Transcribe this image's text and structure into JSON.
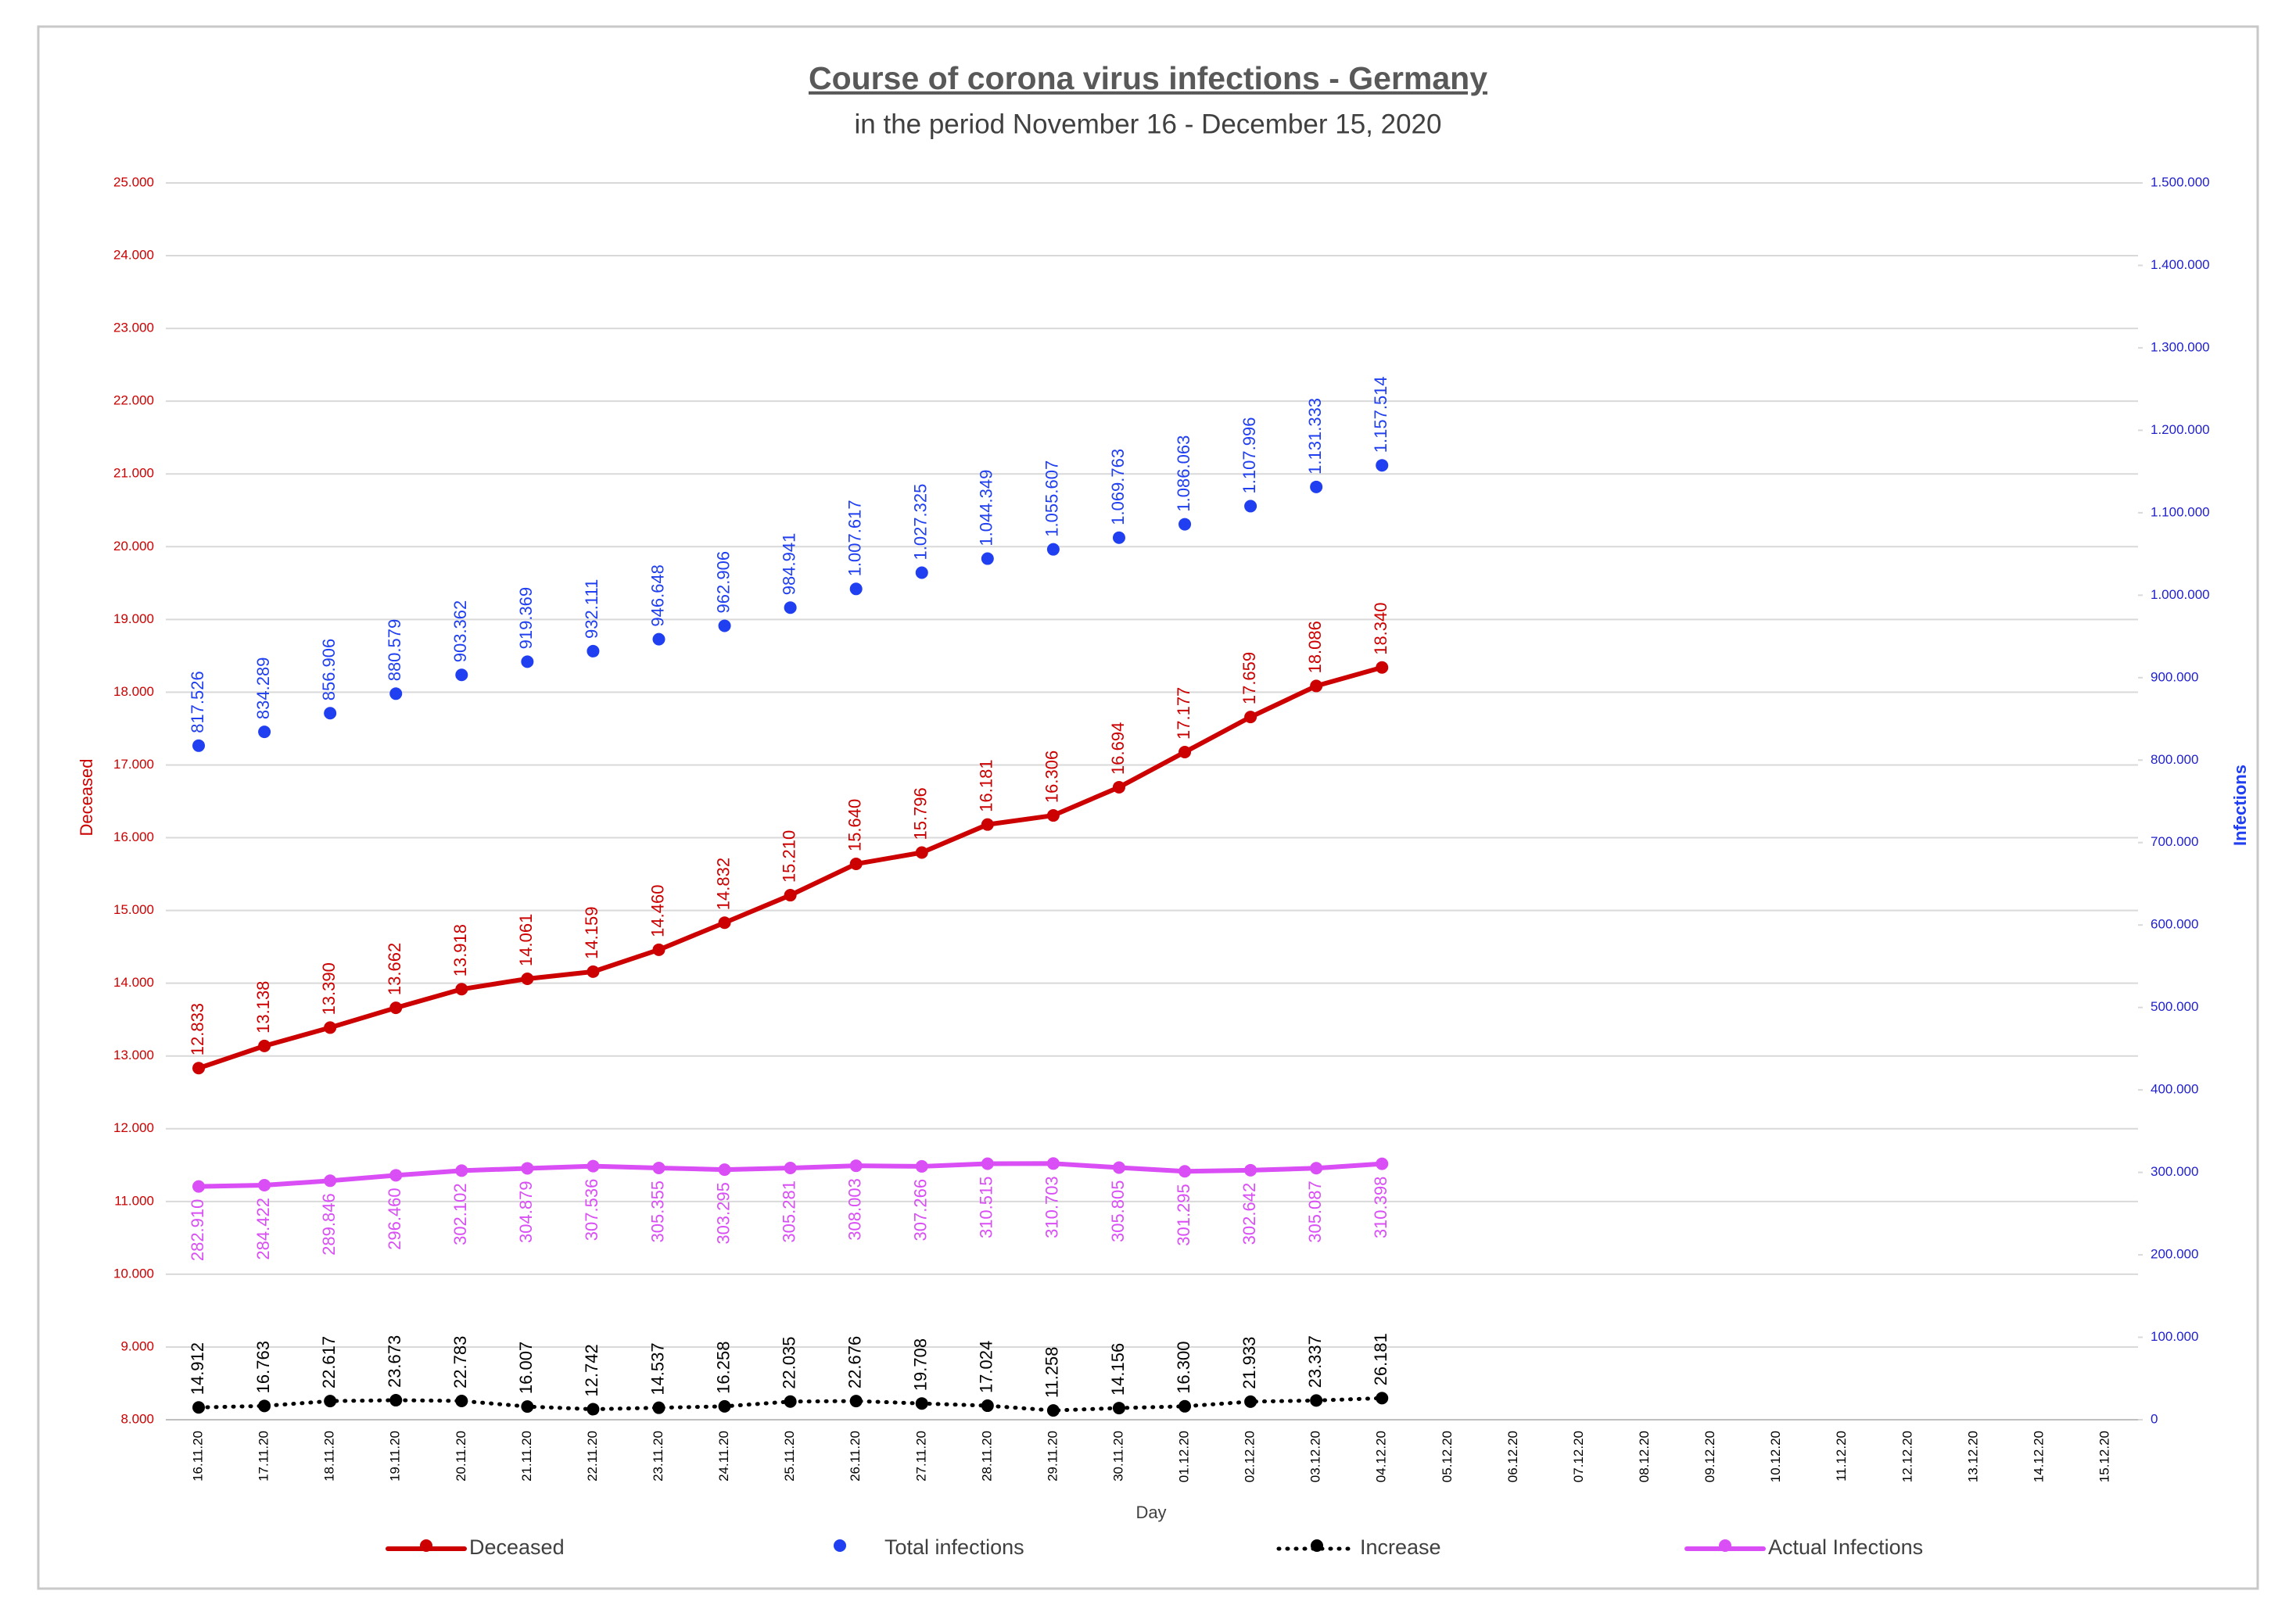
{
  "chart_data": {
    "type": "line",
    "title": "Course of corona virus infections - Germany",
    "subtitle": "in the period November 16 - December 15, 2020",
    "xlabel": "Day",
    "ylabel": "Deceased",
    "y2label": "Infections",
    "grid": true,
    "legend": "bottom",
    "categories": [
      "16.11.20",
      "17.11.20",
      "18.11.20",
      "19.11.20",
      "20.11.20",
      "21.11.20",
      "22.11.20",
      "23.11.20",
      "24.11.20",
      "25.11.20",
      "26.11.20",
      "27.11.20",
      "28.11.20",
      "29.11.20",
      "30.11.20",
      "01.12.20",
      "02.12.20",
      "03.12.20",
      "04.12.20",
      "05.12.20",
      "06.12.20",
      "07.12.20",
      "08.12.20",
      "09.12.20",
      "10.12.20",
      "11.12.20",
      "12.12.20",
      "13.12.20",
      "14.12.20",
      "15.12.20"
    ],
    "ylim": [
      8000,
      25000
    ],
    "yticks": [
      {
        "value": 8000,
        "label": "8.000"
      },
      {
        "value": 9000,
        "label": "9.000"
      },
      {
        "value": 10000,
        "label": "10.000"
      },
      {
        "value": 11000,
        "label": "11.000"
      },
      {
        "value": 12000,
        "label": "12.000"
      },
      {
        "value": 13000,
        "label": "13.000"
      },
      {
        "value": 14000,
        "label": "14.000"
      },
      {
        "value": 15000,
        "label": "15.000"
      },
      {
        "value": 16000,
        "label": "16.000"
      },
      {
        "value": 17000,
        "label": "17.000"
      },
      {
        "value": 18000,
        "label": "18.000"
      },
      {
        "value": 19000,
        "label": "19.000"
      },
      {
        "value": 20000,
        "label": "20.000"
      },
      {
        "value": 21000,
        "label": "21.000"
      },
      {
        "value": 22000,
        "label": "22.000"
      },
      {
        "value": 23000,
        "label": "23.000"
      },
      {
        "value": 24000,
        "label": "24.000"
      },
      {
        "value": 25000,
        "label": "25.000"
      }
    ],
    "y2lim": [
      0,
      1500000
    ],
    "y2ticks": [
      0,
      {
        "value": 100000,
        "label": "100.000"
      },
      {
        "value": 200000,
        "label": "200.000"
      },
      {
        "value": 300000,
        "label": "300.000"
      },
      {
        "value": 400000,
        "label": "400.000"
      },
      {
        "value": 500000,
        "label": "500.000"
      },
      {
        "value": 600000,
        "label": "600.000"
      },
      {
        "value": 700000,
        "label": "700.000"
      },
      {
        "value": 800000,
        "label": "800.000"
      },
      {
        "value": 900000,
        "label": "900.000"
      },
      {
        "value": 1000000,
        "label": "1.000.000"
      },
      {
        "value": 1100000,
        "label": "1.100.000"
      },
      {
        "value": 1200000,
        "label": "1.200.000"
      },
      {
        "value": 1300000,
        "label": "1.300.000"
      },
      {
        "value": 1400000,
        "label": "1.400.000"
      },
      {
        "value": 1500000,
        "label": "1.500.000"
      }
    ],
    "series": [
      {
        "name": "Deceased",
        "color": "#cc0000",
        "axis": "y",
        "line": "solid",
        "label_side": "above",
        "values": [
          12833,
          13138,
          13390,
          13662,
          13918,
          14061,
          14159,
          14460,
          14832,
          15210,
          15640,
          15796,
          16181,
          16306,
          16694,
          17177,
          17659,
          18086,
          18340,
          null,
          null,
          null,
          null,
          null,
          null,
          null,
          null,
          null,
          null,
          null
        ],
        "value_labels": [
          "12.833",
          "13.138",
          "13.390",
          "13.662",
          "13.918",
          "14.061",
          "14.159",
          "14.460",
          "14.832",
          "15.210",
          "15.640",
          "15.796",
          "16.181",
          "16.306",
          "16.694",
          "17.177",
          "17.659",
          "18.086",
          "18.340",
          null,
          null,
          null,
          null,
          null,
          null,
          null,
          null,
          null,
          null,
          null
        ]
      },
      {
        "name": "Total infections",
        "color": "#1f3ff0",
        "axis": "y2",
        "line": "none",
        "label_side": "above",
        "values": [
          817526,
          834289,
          856906,
          880579,
          903362,
          919369,
          932111,
          946648,
          962906,
          984941,
          1007617,
          1027325,
          1044349,
          1055607,
          1069763,
          1086063,
          1107996,
          1131333,
          1157514,
          null,
          null,
          null,
          null,
          null,
          null,
          null,
          null,
          null,
          null,
          null
        ],
        "value_labels": [
          "817.526",
          "834.289",
          "856.906",
          "880.579",
          "903.362",
          "919.369",
          "932.111",
          "946.648",
          "962.906",
          "984.941",
          "1.007.617",
          "1.027.325",
          "1.044.349",
          "1.055.607",
          "1.069.763",
          "1.086.063",
          "1.107.996",
          "1.131.333",
          "1.157.514",
          null,
          null,
          null,
          null,
          null,
          null,
          null,
          null,
          null,
          null,
          null
        ]
      },
      {
        "name": "Increase",
        "color": "#000000",
        "axis": "y2",
        "line": "dotted",
        "label_side": "above",
        "values": [
          14912,
          16763,
          22617,
          23673,
          22783,
          16007,
          12742,
          14537,
          16258,
          22035,
          22676,
          19708,
          17024,
          11258,
          14156,
          16300,
          21933,
          23337,
          26181,
          null,
          null,
          null,
          null,
          null,
          null,
          null,
          null,
          null,
          null,
          null
        ],
        "value_labels": [
          "14.912",
          "16.763",
          "22.617",
          "23.673",
          "22.783",
          "16.007",
          "12.742",
          "14.537",
          "16.258",
          "22.035",
          "22.676",
          "19.708",
          "17.024",
          "11.258",
          "14.156",
          "16.300",
          "21.933",
          "23.337",
          "26.181",
          null,
          null,
          null,
          null,
          null,
          null,
          null,
          null,
          null,
          null,
          null
        ]
      },
      {
        "name": "Actual Infections",
        "color": "#d94ef5",
        "axis": "y2",
        "line": "solid",
        "label_side": "below",
        "values": [
          282910,
          284422,
          289846,
          296460,
          302102,
          304879,
          307536,
          305355,
          303295,
          305281,
          308003,
          307266,
          310515,
          310703,
          305805,
          301295,
          302642,
          305087,
          310398,
          null,
          null,
          null,
          null,
          null,
          null,
          null,
          null,
          null,
          null,
          null
        ],
        "value_labels": [
          "282.910",
          "284.422",
          "289.846",
          "296.460",
          "302.102",
          "304.879",
          "307.536",
          "305.355",
          "303.295",
          "305.281",
          "308.003",
          "307.266",
          "310.515",
          "310.703",
          "305.805",
          "301.295",
          "302.642",
          "305.087",
          "310.398",
          null,
          null,
          null,
          null,
          null,
          null,
          null,
          null,
          null,
          null,
          null
        ]
      }
    ]
  }
}
